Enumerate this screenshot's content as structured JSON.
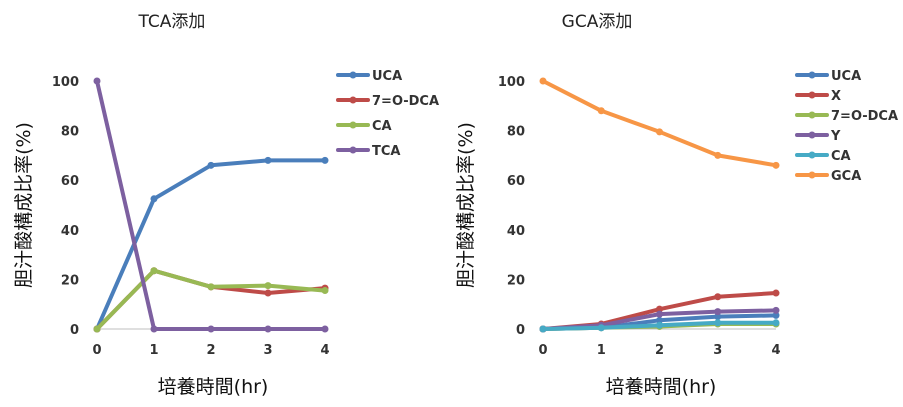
{
  "chart_data": [
    {
      "type": "line",
      "title": "TCA添加",
      "xlabel": "培養時間(hr)",
      "ylabel": "胆汁酸構成比率(%)",
      "x": [
        0,
        1,
        2,
        3,
        4
      ],
      "xlim": [
        0,
        4
      ],
      "ylim": [
        0,
        100
      ],
      "yticks": [
        0,
        20,
        40,
        60,
        80,
        100
      ],
      "grid": false,
      "legend_position": "right",
      "series": [
        {
          "name": "UCA",
          "color": "#4a7ebb",
          "values": [
            0,
            52.5,
            66,
            68,
            68
          ]
        },
        {
          "name": "7=O-DCA",
          "color": "#be4b48",
          "values": [
            0,
            23.5,
            17,
            14.5,
            16.5
          ]
        },
        {
          "name": "CA",
          "color": "#98b954",
          "values": [
            0,
            23.5,
            17,
            17.5,
            15.5
          ]
        },
        {
          "name": "TCA",
          "color": "#7d60a0",
          "values": [
            100,
            0,
            0,
            0,
            0
          ]
        }
      ]
    },
    {
      "type": "line",
      "title": "GCA添加",
      "xlabel": "培養時間(hr)",
      "ylabel": "胆汁酸構成比率(%)",
      "x": [
        0,
        1,
        2,
        3,
        4
      ],
      "xlim": [
        0,
        4
      ],
      "ylim": [
        0,
        100
      ],
      "yticks": [
        0,
        20,
        40,
        60,
        80,
        100
      ],
      "grid": false,
      "legend_position": "right",
      "series": [
        {
          "name": "UCA",
          "color": "#4a7ebb",
          "values": [
            0,
            0.5,
            3.5,
            5,
            5.5
          ]
        },
        {
          "name": "X",
          "color": "#be4b48",
          "values": [
            0,
            2,
            8,
            13,
            14.5
          ]
        },
        {
          "name": "7=O-DCA",
          "color": "#98b954",
          "values": [
            0,
            0.5,
            1,
            2,
            2
          ]
        },
        {
          "name": "Y",
          "color": "#7d60a0",
          "values": [
            0,
            1.5,
            6,
            7,
            7.5
          ]
        },
        {
          "name": "CA",
          "color": "#46aac5",
          "values": [
            0,
            0.5,
            1.5,
            2.5,
            2.5
          ]
        },
        {
          "name": "GCA",
          "color": "#f79646",
          "values": [
            100,
            88,
            79.5,
            70,
            66
          ]
        }
      ]
    }
  ]
}
